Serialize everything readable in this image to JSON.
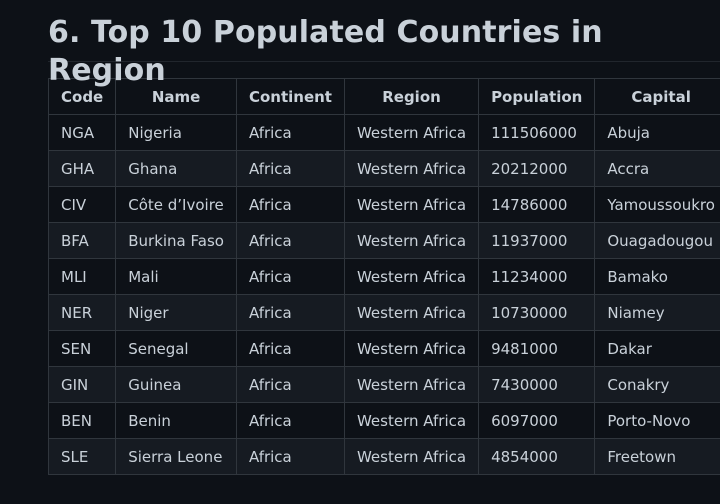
{
  "page": {
    "title": "6. Top 10 Populated Countries in Region"
  },
  "table": {
    "headers": [
      "Code",
      "Name",
      "Continent",
      "Region",
      "Population",
      "Capital"
    ],
    "rows": [
      [
        "NGA",
        "Nigeria",
        "Africa",
        "Western Africa",
        "111506000",
        "Abuja"
      ],
      [
        "GHA",
        "Ghana",
        "Africa",
        "Western Africa",
        "20212000",
        "Accra"
      ],
      [
        "CIV",
        "Côte d’Ivoire",
        "Africa",
        "Western Africa",
        "14786000",
        "Yamoussoukro"
      ],
      [
        "BFA",
        "Burkina Faso",
        "Africa",
        "Western Africa",
        "11937000",
        "Ouagadougou"
      ],
      [
        "MLI",
        "Mali",
        "Africa",
        "Western Africa",
        "11234000",
        "Bamako"
      ],
      [
        "NER",
        "Niger",
        "Africa",
        "Western Africa",
        "10730000",
        "Niamey"
      ],
      [
        "SEN",
        "Senegal",
        "Africa",
        "Western Africa",
        "9481000",
        "Dakar"
      ],
      [
        "GIN",
        "Guinea",
        "Africa",
        "Western Africa",
        "7430000",
        "Conakry"
      ],
      [
        "BEN",
        "Benin",
        "Africa",
        "Western Africa",
        "6097000",
        "Porto-Novo"
      ],
      [
        "SLE",
        "Sierra Leone",
        "Africa",
        "Western Africa",
        "4854000",
        "Freetown"
      ]
    ]
  }
}
